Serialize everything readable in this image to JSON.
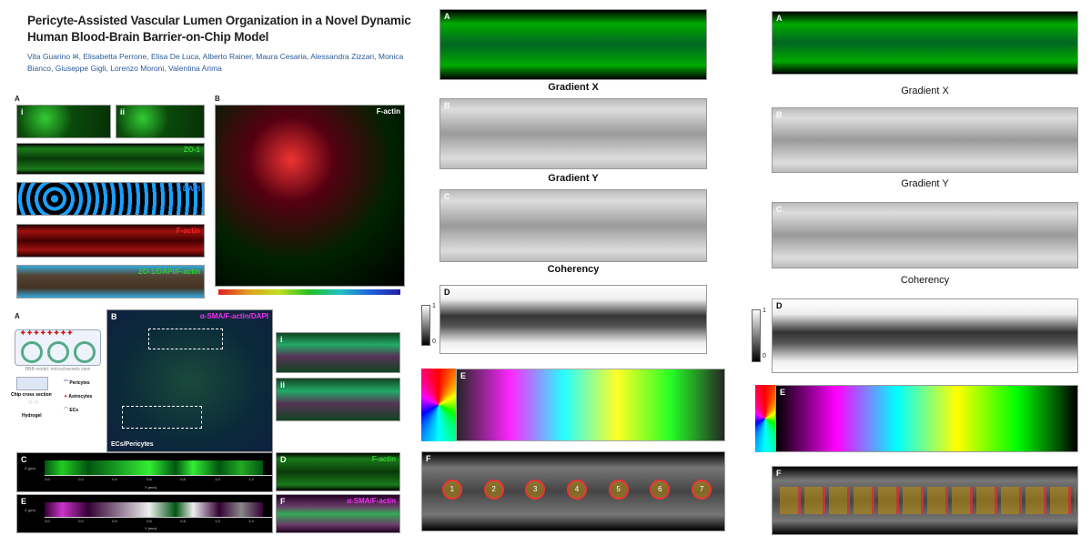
{
  "header": {
    "title": "Pericyte-Assisted Vascular Lumen Organization in a Novel Dynamic Human Blood-Brain Barrier-on-Chip Model",
    "authors": "Vita Guarino ✉, Elisabetta Perrone, Elisa De Luca, Alberto Rainer, Maura Cesaria, Alessandra Zizzari, Monica Bianco, Giuseppe Gigli, Lorenzo Moroni, Valentina Arima"
  },
  "fig1": {
    "a": "A",
    "b": "B",
    "i": "i",
    "ii": "ii",
    "zo1": "ZO-1",
    "dapi": "DAPI",
    "factin": "F-actin",
    "merge": "ZO-1/DAPI/F-actin",
    "b_tag": "F-actin"
  },
  "fig2": {
    "a": "A",
    "b": "B",
    "c": "C",
    "d": "D",
    "e": "E",
    "f": "F",
    "i": "i",
    "ii": "ii",
    "b_tag": "α-SMA/F-actin/DAPI",
    "b_bottom": "ECs/Pericytes",
    "schematic_caption": "BBB model: microchannels view",
    "legend": [
      "Pericytes",
      "Astrocytes",
      "ECs"
    ],
    "chip": "Chip cross section",
    "hydrogel": "Hydrogel",
    "d_tag": "F-actin",
    "f_tag": "α-SMA/F-actin",
    "zlabel": "Z (µm)",
    "xlabel": "Y (mm)",
    "xticks": [
      "0.0",
      "0.2",
      "0.4",
      "0.6",
      "0.8",
      "1.0",
      "1.2"
    ]
  },
  "mid": {
    "a": "A",
    "b": "B",
    "c": "C",
    "d": "D",
    "e": "E",
    "f": "F",
    "cap1": "Gradient X",
    "cap2": "Gradient Y",
    "cap3": "Coherency",
    "bar_top": "1",
    "bar_bot": "0",
    "circles": [
      "1",
      "2",
      "3",
      "4",
      "5",
      "6",
      "7"
    ]
  },
  "right": {
    "a": "A",
    "b": "B",
    "c": "C",
    "d": "D",
    "e": "E",
    "f": "F",
    "cap1": "Gradient X",
    "cap2": "Gradient Y",
    "cap3": "Coherency",
    "bar_top": "1",
    "bar_bot": "0"
  }
}
